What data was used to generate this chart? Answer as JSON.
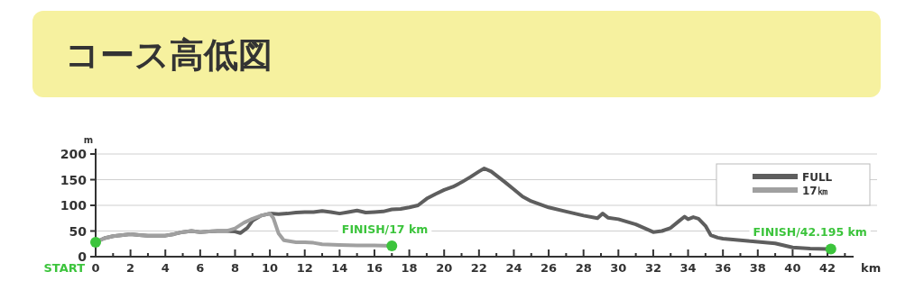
{
  "chart_data": {
    "type": "line",
    "title": "コース高低図",
    "xlabel": "km",
    "ylabel": "m",
    "xlim": [
      0,
      43.5
    ],
    "ylim": [
      0,
      200
    ],
    "xticks": [
      0,
      {
        "value": 1,
        "label": null
      },
      2,
      {
        "value": 3,
        "label": null
      },
      4,
      {
        "value": 5,
        "label": null
      },
      6,
      {
        "value": 7,
        "label": null
      },
      8,
      {
        "value": 9,
        "label": null
      },
      10,
      {
        "value": 11,
        "label": null
      },
      12,
      {
        "value": 13,
        "label": null
      },
      14,
      {
        "value": 15,
        "label": null
      },
      16,
      {
        "value": 17,
        "label": null
      },
      18,
      {
        "value": 19,
        "label": null
      },
      20,
      {
        "value": 21,
        "label": null
      },
      22,
      {
        "value": 23,
        "label": null
      },
      24,
      {
        "value": 25,
        "label": null
      },
      26,
      {
        "value": 27,
        "label": null
      },
      28,
      {
        "value": 29,
        "label": null
      },
      30,
      {
        "value": 31,
        "label": null
      },
      32,
      {
        "value": 33,
        "label": null
      },
      34,
      {
        "value": 35,
        "label": null
      },
      36,
      {
        "value": 37,
        "label": null
      },
      38,
      {
        "value": 39,
        "label": null
      },
      40,
      {
        "value": 41,
        "label": null
      },
      42,
      {
        "value": 43,
        "label": null
      }
    ],
    "yticks": [
      0,
      50,
      100,
      150,
      200
    ],
    "grid": "y",
    "legend": "top right",
    "line_style": "solid",
    "series": [
      {
        "name": "FULL",
        "color": "#5e5e5e",
        "x": [
          0,
          0.5,
          1,
          2,
          2.5,
          3,
          4,
          4.5,
          5,
          5.5,
          6,
          6.5,
          7,
          7.5,
          8,
          8.3,
          8.7,
          9,
          9.5,
          10,
          10.5,
          11,
          11.5,
          12,
          12.5,
          13,
          13.5,
          14,
          14.5,
          15,
          15.5,
          16,
          16.5,
          17,
          17.5,
          18,
          18.5,
          19,
          19.5,
          20,
          20.5,
          21,
          21.5,
          22,
          22.3,
          22.7,
          23,
          23.5,
          24,
          24.5,
          25,
          25.5,
          26,
          27,
          28,
          28.8,
          29.1,
          29.4,
          30,
          31,
          32,
          32.5,
          33,
          33.5,
          33.8,
          34,
          34.3,
          34.6,
          35,
          35.3,
          35.7,
          36,
          37,
          38,
          39,
          40,
          41,
          42
        ],
        "values": [
          28,
          36,
          40,
          44,
          42,
          41,
          41,
          44,
          48,
          50,
          48,
          49,
          50,
          50,
          49,
          46,
          56,
          70,
          80,
          84,
          83,
          84,
          86,
          87,
          87,
          89,
          87,
          84,
          87,
          90,
          86,
          87,
          88,
          92,
          93,
          96,
          100,
          113,
          122,
          130,
          136,
          145,
          155,
          166,
          172,
          166,
          158,
          145,
          131,
          117,
          108,
          102,
          96,
          88,
          80,
          75,
          84,
          76,
          73,
          63,
          48,
          50,
          56,
          70,
          78,
          73,
          77,
          74,
          60,
          42,
          37,
          35,
          32,
          29,
          26,
          18,
          16,
          15
        ]
      },
      {
        "name": "17㎞",
        "color": "#a0a0a0",
        "x": [
          0,
          0.5,
          1,
          2,
          2.5,
          3,
          4,
          4.5,
          5,
          5.5,
          6,
          6.5,
          7,
          7.5,
          8,
          8.5,
          9,
          9.5,
          10,
          10.2,
          10.5,
          10.8,
          11.5,
          12,
          12.5,
          13,
          14,
          15,
          16,
          17
        ],
        "values": [
          28,
          36,
          40,
          44,
          42,
          41,
          41,
          44,
          48,
          50,
          48,
          49,
          50,
          50,
          55,
          66,
          74,
          80,
          84,
          75,
          45,
          32,
          28,
          28,
          27,
          24,
          23,
          22,
          22,
          21
        ]
      },
      {
        "type": "scatter",
        "marker": "circle",
        "color": "#3cc43c",
        "x": [
          0,
          17,
          42.195
        ],
        "values": [
          28,
          21,
          15
        ]
      }
    ],
    "annotations": [
      "START",
      {
        "text": "FINISH/17 km",
        "x": 17,
        "y": 21
      },
      {
        "text": "FINISH/42.195 km",
        "x": 42.195,
        "y": 15
      }
    ]
  }
}
